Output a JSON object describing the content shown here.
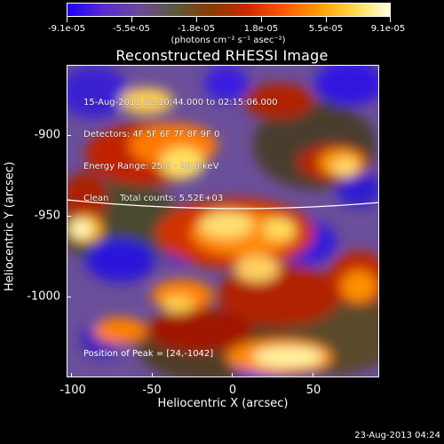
{
  "colorbar": {
    "colors": [
      "#1e00ff",
      "#5a2ad0",
      "#6b4a9a",
      "#5a5a3c",
      "#8a3a00",
      "#cc2a00",
      "#ff5500",
      "#ff9a00",
      "#ffd84a",
      "#ffffe0"
    ],
    "tick_labels": [
      "-9.1e-05",
      "-5.5e-05",
      "-1.8e-05",
      "1.8e-05",
      "5.5e-05",
      "9.1e-05"
    ],
    "units": "(photons cm⁻² s⁻¹ asec⁻²)"
  },
  "title": "Reconstructed RHESSI Image",
  "info": {
    "line1": "15-Aug-2011 02:10:44.000 to 02:15:06.000",
    "line2": "Detectors: 4F 5F 6F 7F 8F 9F 0",
    "line3": "Energy Range: 25.0 - 50.0 keV",
    "line4": "Clean    Total counts: 5.52E+03"
  },
  "peak_text": "Position of Peak = [24,-1042]",
  "axes": {
    "x_title": "Heliocentric X (arcsec)",
    "y_title": "Heliocentric Y (arcsec)",
    "x_ticks": [
      "-100",
      "-50",
      "0",
      "50"
    ],
    "y_ticks": [
      "-900",
      "-950",
      "-1000"
    ]
  },
  "timestamp": "23-Aug-2013 04:24"
}
